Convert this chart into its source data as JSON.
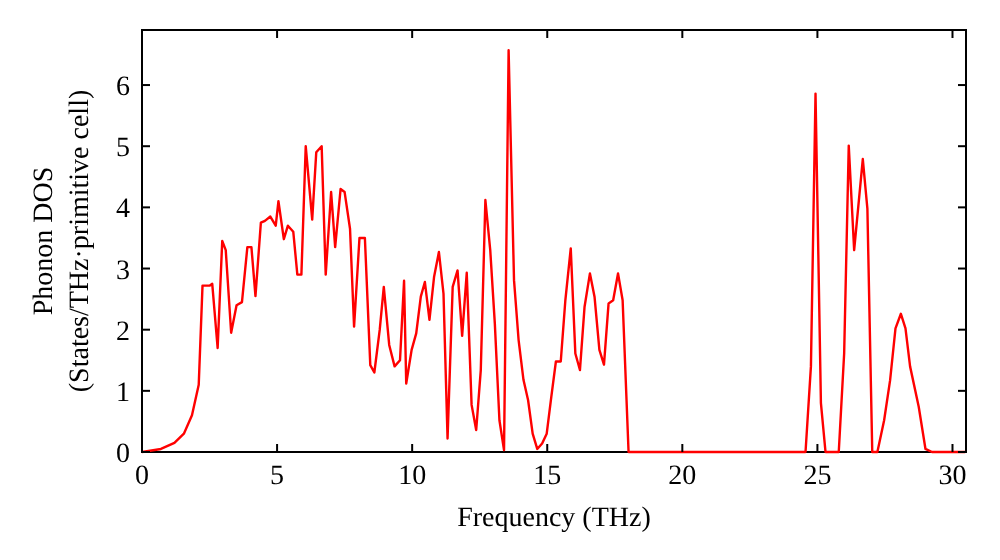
{
  "chart_data": {
    "type": "line",
    "xlabel": "Frequency (THz)",
    "ylabel": "Phonon DOS\n(States/THz·primitive cell)",
    "xlim": [
      0,
      30.5
    ],
    "ylim": [
      0,
      6.9
    ],
    "xticks": [
      0,
      5,
      10,
      15,
      20,
      25,
      30
    ],
    "yticks": [
      0,
      1,
      2,
      3,
      4,
      5,
      6
    ],
    "grid": false,
    "marker": "none",
    "line_style": "solid",
    "series": [
      {
        "color": "#ff0000",
        "x": [
          0,
          0.7,
          1.2,
          1.55,
          1.85,
          2.1,
          2.24,
          2.5,
          2.6,
          2.8,
          2.97,
          3.1,
          3.3,
          3.5,
          3.7,
          3.9,
          4.05,
          4.2,
          4.4,
          4.55,
          4.75,
          4.95,
          5.05,
          5.25,
          5.4,
          5.6,
          5.75,
          5.9,
          6.06,
          6.3,
          6.45,
          6.65,
          6.8,
          7.0,
          7.15,
          7.35,
          7.5,
          7.7,
          7.85,
          8.05,
          8.25,
          8.45,
          8.6,
          8.8,
          8.95,
          9.15,
          9.35,
          9.55,
          9.7,
          9.78,
          9.98,
          10.15,
          10.32,
          10.47,
          10.64,
          10.81,
          10.99,
          11.16,
          11.31,
          11.5,
          11.68,
          11.85,
          12.02,
          12.2,
          12.37,
          12.54,
          12.71,
          12.89,
          13.06,
          13.23,
          13.4,
          13.57,
          13.77,
          13.94,
          14.12,
          14.29,
          14.46,
          14.63,
          14.81,
          14.98,
          15.15,
          15.32,
          15.5,
          15.67,
          15.87,
          16.04,
          16.21,
          16.38,
          16.58,
          16.75,
          16.93,
          17.1,
          17.27,
          17.44,
          17.62,
          17.79,
          18.01,
          24.56,
          24.76,
          24.93,
          25.13,
          25.3,
          25.79,
          25.99,
          26.16,
          26.36,
          26.68,
          26.85,
          27.03,
          27.22,
          27.47,
          27.69,
          27.89,
          28.09,
          28.26,
          28.43,
          28.75,
          29.0,
          29.24,
          30.47
        ],
        "values": [
          0,
          0.05,
          0.15,
          0.3,
          0.6,
          1.1,
          2.72,
          2.72,
          2.75,
          1.7,
          3.45,
          3.3,
          1.95,
          2.4,
          2.45,
          3.35,
          3.35,
          2.55,
          3.75,
          3.78,
          3.85,
          3.7,
          4.1,
          3.48,
          3.7,
          3.6,
          2.9,
          2.9,
          5.0,
          3.8,
          4.9,
          5.0,
          2.9,
          4.25,
          3.35,
          4.3,
          4.25,
          3.65,
          2.05,
          3.5,
          3.5,
          1.42,
          1.3,
          2.0,
          2.7,
          1.75,
          1.4,
          1.5,
          2.8,
          1.12,
          1.67,
          1.94,
          2.54,
          2.78,
          2.16,
          2.86,
          3.27,
          2.59,
          0.22,
          2.7,
          2.97,
          1.9,
          2.93,
          0.77,
          0.36,
          1.34,
          4.12,
          3.3,
          2.1,
          0.52,
          0.03,
          6.57,
          2.81,
          1.83,
          1.18,
          0.85,
          0.3,
          0.05,
          0.14,
          0.3,
          0.9,
          1.48,
          1.48,
          2.48,
          3.33,
          1.61,
          1.34,
          2.37,
          2.92,
          2.54,
          1.67,
          1.43,
          2.43,
          2.48,
          2.92,
          2.48,
          0,
          0,
          1.4,
          5.86,
          0.8,
          0,
          0,
          1.61,
          5.01,
          3.3,
          4.79,
          3.98,
          0,
          0,
          0.52,
          1.17,
          2.02,
          2.26,
          2.02,
          1.4,
          0.74,
          0.05,
          0,
          0
        ]
      }
    ]
  }
}
